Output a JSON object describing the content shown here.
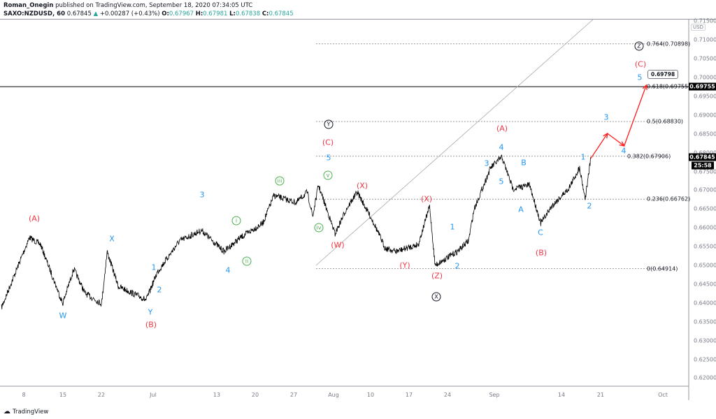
{
  "header": {
    "author": "Roman_Onegin",
    "published": "published on TradingView.com, September 18, 2020 07:34:05 UTC",
    "symbol": "SAXO:NZDUSD, 60",
    "last": "0.67845",
    "change": "+0.00287 (+0.43%)",
    "o_label": "O:",
    "o": "0.67967",
    "h_label": "H:",
    "h": "0.67981",
    "l_label": "L:",
    "l": "0.67838",
    "c_label": "C:",
    "c": "0.67845",
    "up_icon": "triangle-up-icon"
  },
  "axis": {
    "currency": "USD",
    "price_ticks": [
      "0.71500",
      "0.71000",
      "0.70500",
      "0.70000",
      "0.69500",
      "0.69000",
      "0.68500",
      "0.68000",
      "0.67500",
      "0.67000",
      "0.66500",
      "0.66000",
      "0.65500",
      "0.65000",
      "0.64500",
      "0.64000",
      "0.63500",
      "0.63000",
      "0.62500",
      "0.62000"
    ],
    "time_ticks": [
      "8",
      "15",
      "22",
      "Jul",
      "13",
      "20",
      "27",
      "Aug",
      "10",
      "17",
      "24",
      "Sep",
      "14",
      "21",
      "Oct"
    ],
    "price_tag": "0.67845",
    "countdown": "25:58",
    "level_tag": "0.69755"
  },
  "fib": [
    "0.764(0.70898)",
    "0.618(0.69755)",
    "0.5(0.68830)",
    "0.382(0.67906)",
    "0.236(0.66762)",
    "0(0.64914)"
  ],
  "callout": "0.69798",
  "labels": {
    "red": [
      "(A)",
      "(B)",
      "(C)",
      "(W)",
      "(X)",
      "(X)",
      "(Y)",
      "(Z)",
      "(A)",
      "(B)",
      "(C)"
    ],
    "blue": [
      "W",
      "X",
      "Y",
      "1",
      "2",
      "3",
      "4",
      "5",
      "1",
      "2",
      "3",
      "4",
      "5",
      "A",
      "B",
      "C",
      "1",
      "2",
      "3",
      "4",
      "5"
    ],
    "green": [
      "i",
      "ii",
      "iii",
      "iv",
      "v"
    ],
    "black": [
      "Y",
      "X",
      "Z"
    ]
  },
  "colors": {
    "red": "#f23645",
    "blue": "#2196f3",
    "green": "#4caf50",
    "up": "#26a69a"
  },
  "brand": "TradingView",
  "chart_data": {
    "type": "line",
    "symbol": "SAXO:NZDUSD",
    "interval": "60",
    "ylim": [
      0.6175,
      0.7155
    ],
    "points": [
      [
        "2020-06-04",
        0.6388
      ],
      [
        "2020-06-09",
        0.6574
      ],
      [
        "2020-06-11",
        0.6556
      ],
      [
        "2020-06-15",
        0.6398
      ],
      [
        "2020-06-17",
        0.6491
      ],
      [
        "2020-06-19",
        0.6426
      ],
      [
        "2020-06-22",
        0.6398
      ],
      [
        "2020-06-23",
        0.6537
      ],
      [
        "2020-06-25",
        0.6444
      ],
      [
        "2020-06-29",
        0.6416
      ],
      [
        "2020-06-30",
        0.6407
      ],
      [
        "2020-07-02",
        0.6481
      ],
      [
        "2020-07-06",
        0.6565
      ],
      [
        "2020-07-10",
        0.6593
      ],
      [
        "2020-07-14",
        0.6537
      ],
      [
        "2020-07-17",
        0.6574
      ],
      [
        "2020-07-21",
        0.6612
      ],
      [
        "2020-07-23",
        0.6686
      ],
      [
        "2020-07-27",
        0.6667
      ],
      [
        "2020-07-29",
        0.6695
      ],
      [
        "2020-07-30",
        0.663
      ],
      [
        "2020-07-31",
        0.6714
      ],
      [
        "2020-08-03",
        0.6584
      ],
      [
        "2020-08-05",
        0.6649
      ],
      [
        "2020-08-07",
        0.6695
      ],
      [
        "2020-08-10",
        0.6612
      ],
      [
        "2020-08-12",
        0.6546
      ],
      [
        "2020-08-14",
        0.6537
      ],
      [
        "2020-08-18",
        0.6556
      ],
      [
        "2020-08-20",
        0.6658
      ],
      [
        "2020-08-21",
        0.65
      ],
      [
        "2020-08-25",
        0.6537
      ],
      [
        "2020-08-27",
        0.6565
      ],
      [
        "2020-08-28",
        0.6649
      ],
      [
        "2020-08-31",
        0.676
      ],
      [
        "2020-09-02",
        0.6788
      ],
      [
        "2020-09-04",
        0.6704
      ],
      [
        "2020-09-07",
        0.6714
      ],
      [
        "2020-09-09",
        0.6612
      ],
      [
        "2020-09-11",
        0.6658
      ],
      [
        "2020-09-14",
        0.6704
      ],
      [
        "2020-09-16",
        0.676
      ],
      [
        "2020-09-17",
        0.6677
      ],
      [
        "2020-09-18",
        0.67845
      ]
    ],
    "projection": [
      [
        "2020-09-18",
        0.67845
      ],
      [
        "2020-09-21",
        0.6851
      ],
      [
        "2020-09-24",
        0.6818
      ],
      [
        "2020-09-28",
        0.69798
      ]
    ]
  }
}
